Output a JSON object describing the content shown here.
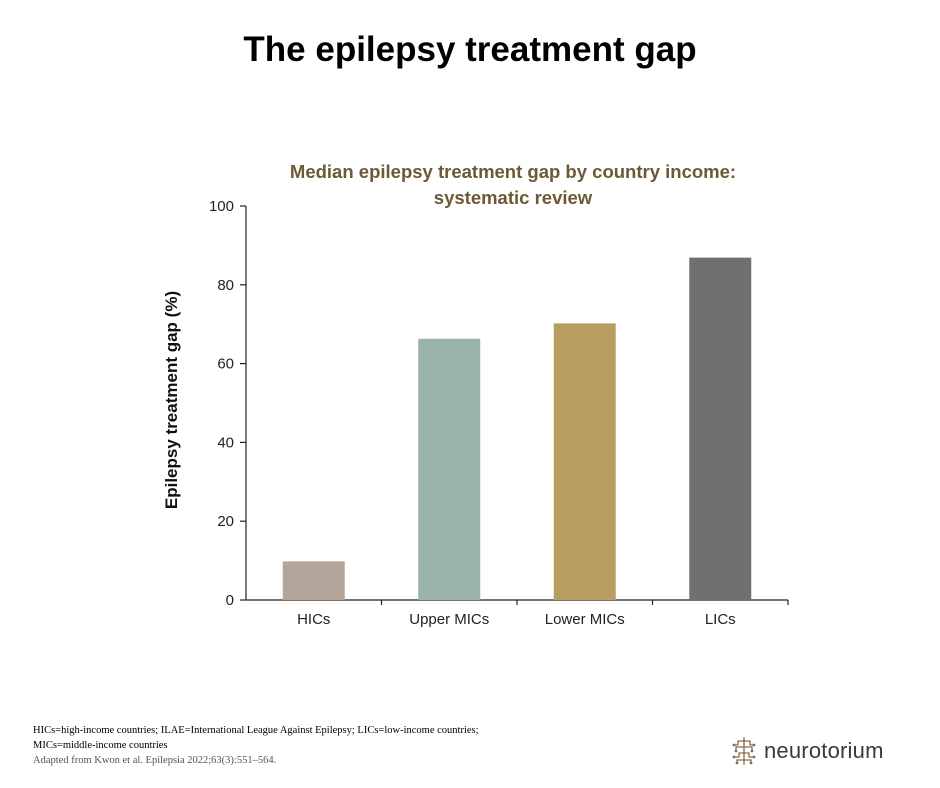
{
  "slide": {
    "title": "The epilepsy treatment gap",
    "footnote_line1": "HICs=high-income countries; ILAE=International League Against Epilepsy; LICs=low-income countries;",
    "footnote_line2": "MICs=middle-income countries",
    "source": "Adapted from Kwon et al. Epilepsia 2022;63(3):551–564.",
    "logo_text": "neurotorium"
  },
  "chart_data": {
    "type": "bar",
    "title_line1": "Median epilepsy treatment gap by country income:",
    "title_line2": "systematic review",
    "title_color": "#6b5a35",
    "categories": [
      "HICs",
      "Upper MICs",
      "Lower MICs",
      "LICs"
    ],
    "values": [
      9.8,
      66.3,
      70.2,
      86.9
    ],
    "colors": [
      "#b3a59a",
      "#9ab3a8",
      "#b89e5e",
      "#707070"
    ],
    "ylabel": "Epilepsy treatment gap (%)",
    "xlabel": "",
    "ylim": [
      0,
      100
    ],
    "yticks": [
      0,
      20,
      40,
      60,
      80,
      100
    ],
    "grid": false,
    "legend": "none"
  }
}
